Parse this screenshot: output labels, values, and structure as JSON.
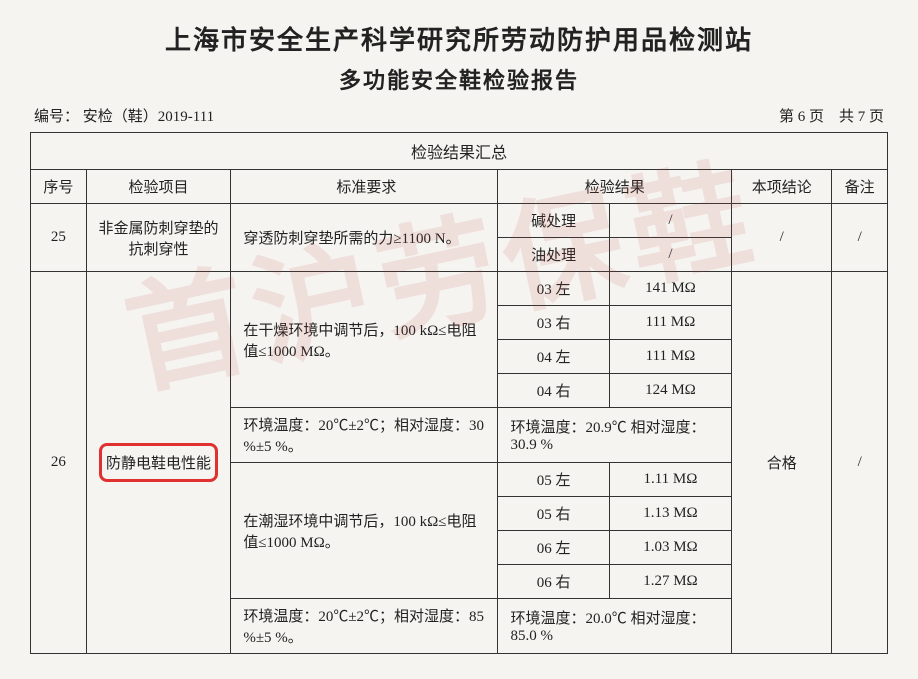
{
  "watermark": "首沪劳保鞋",
  "header": {
    "org": "上海市安全生产科学研究所劳动防护用品检测站",
    "report_type": "多功能安全鞋检验报告",
    "number_label": "编号：",
    "number_value": "安检（鞋）2019-111",
    "page_current": "第 6 页",
    "page_total": "共 7 页"
  },
  "table": {
    "summary_title": "检验结果汇总",
    "headers": {
      "seq": "序号",
      "item": "检验项目",
      "req": "标准要求",
      "result": "检验结果",
      "conclusion": "本项结论",
      "note": "备注"
    },
    "row25": {
      "seq": "25",
      "item": "非金属防刺穿垫的抗刺穿性",
      "req": "穿透防刺穿垫所需的力≥1100 N。",
      "res_a1": "碱处理",
      "res_b1": "/",
      "res_a2": "油处理",
      "res_b2": "/",
      "conclusion": "/",
      "note": "/"
    },
    "row26": {
      "seq": "26",
      "item": "防静电鞋电性能",
      "req_dry": "在干燥环境中调节后，100 kΩ≤电阻值≤1000 MΩ。",
      "dry_rows": [
        {
          "a": "03 左",
          "b": "141 MΩ"
        },
        {
          "a": "03 右",
          "b": "111 MΩ"
        },
        {
          "a": "04 左",
          "b": "111 MΩ"
        },
        {
          "a": "04 右",
          "b": "124 MΩ"
        }
      ],
      "env_dry_req": "环境温度：20℃±2℃；相对湿度：30 %±5 %。",
      "env_dry_res": "环境温度：20.9℃ 相对湿度：30.9 %",
      "req_wet": "在潮湿环境中调节后，100 kΩ≤电阻值≤1000 MΩ。",
      "wet_rows": [
        {
          "a": "05 左",
          "b": "1.11 MΩ"
        },
        {
          "a": "05 右",
          "b": "1.13 MΩ"
        },
        {
          "a": "06 左",
          "b": "1.03 MΩ"
        },
        {
          "a": "06 右",
          "b": "1.27 MΩ"
        }
      ],
      "env_wet_req": "环境温度：20℃±2℃；相对湿度：85 %±5 %。",
      "env_wet_res": "环境温度：20.0℃ 相对湿度：85.0 %",
      "conclusion": "合格",
      "note": "/"
    }
  }
}
